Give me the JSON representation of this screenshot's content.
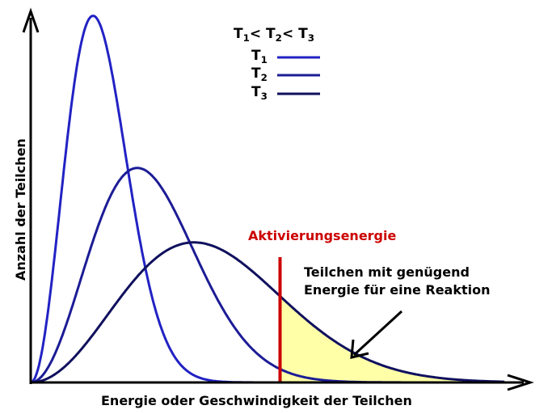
{
  "chart_data": {
    "type": "line",
    "xlabel": "Energie oder Geschwindigkeit der Teilchen",
    "ylabel": "Anzahl der Teilchen",
    "xlim": [
      0,
      8
    ],
    "ylim": [
      0,
      1.01
    ],
    "grid": false,
    "legend": {
      "title": {
        "a": "T",
        "a_sub": "1",
        "lt1": "< T",
        "b_sub": "2",
        "lt2": "< T",
        "c_sub": "3"
      },
      "placement": "top-center"
    },
    "series": [
      {
        "name": "T",
        "sub": "1",
        "peak_x": 1.0,
        "peak_y": 1.0,
        "color": "#2222c4"
      },
      {
        "name": "T",
        "sub": "2",
        "peak_x": 1.71,
        "peak_y": 0.585,
        "color": "#1c1c96"
      },
      {
        "name": "T",
        "sub": "3",
        "peak_x": 2.62,
        "peak_y": 0.382,
        "color": "#10105e"
      }
    ],
    "activation_energy": {
      "x": 4.0,
      "label": "Aktivierungsenergie",
      "color": "#cc0000"
    },
    "shaded_region": {
      "series": 2,
      "from_x": 4.0,
      "color": "#ffffa8"
    },
    "annotation": {
      "line1": "Teilchen mit genügend",
      "line2": "Energie für eine Reaktion"
    }
  }
}
